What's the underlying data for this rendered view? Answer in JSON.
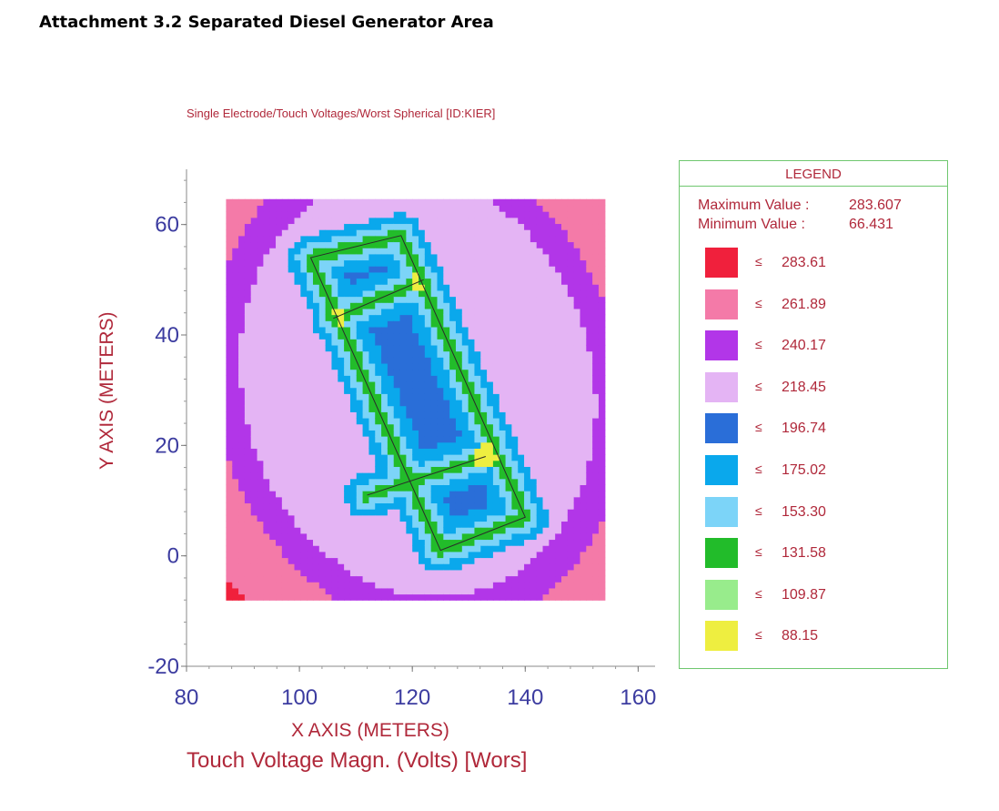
{
  "document": {
    "title": "Attachment 3.2 Separated Diesel Generator Area"
  },
  "chart_data": {
    "type": "heatmap",
    "title": "Single Electrode/Touch Voltages/Worst Spherical [ID:KIER]",
    "xlabel": "X AXIS  (METERS)",
    "ylabel": "Y AXIS  (METERS)",
    "caption": "Touch Voltage Magn. (Volts) [Wors]",
    "xlim": [
      80,
      163
    ],
    "ylim": [
      -20,
      70
    ],
    "x_ticks": [
      80,
      100,
      120,
      140,
      160
    ],
    "y_ticks": [
      -20,
      0,
      20,
      40,
      60
    ],
    "data_extent": {
      "x": [
        87,
        154
      ],
      "y": [
        -8,
        64
      ]
    },
    "legend_title": "LEGEND",
    "max_label": "Maximum Value :",
    "max_value": "283.607",
    "min_label": "Minimum Value :",
    "min_value": "66.431",
    "levels": [
      {
        "leq": "≤",
        "value": "283.61",
        "color": "#f0203c"
      },
      {
        "leq": "≤",
        "value": "261.89",
        "color": "#f47aa8"
      },
      {
        "leq": "≤",
        "value": "240.17",
        "color": "#b236e8"
      },
      {
        "leq": "≤",
        "value": "218.45",
        "color": "#e4b4f4"
      },
      {
        "leq": "≤",
        "value": "196.74",
        "color": "#2a6ed8"
      },
      {
        "leq": "≤",
        "value": "175.02",
        "color": "#0aa8ec"
      },
      {
        "leq": "≤",
        "value": "153.30",
        "color": "#7cd4f8"
      },
      {
        "leq": "≤",
        "value": "131.58",
        "color": "#22bc2a"
      },
      {
        "leq": "≤",
        "value": "109.87",
        "color": "#98ec8c"
      },
      {
        "leq": "≤",
        "value": "88.15",
        "color": "#eeee40"
      }
    ],
    "grid_corners": [
      [
        102,
        54
      ],
      [
        118,
        58
      ],
      [
        140,
        7
      ],
      [
        125,
        1
      ]
    ],
    "grid_center": [
      121,
      31
    ],
    "grid_dividers": [
      [
        [
          106,
          43
        ],
        [
          122,
          50
        ]
      ],
      [
        [
          112,
          11
        ],
        [
          133,
          18
        ]
      ]
    ]
  }
}
